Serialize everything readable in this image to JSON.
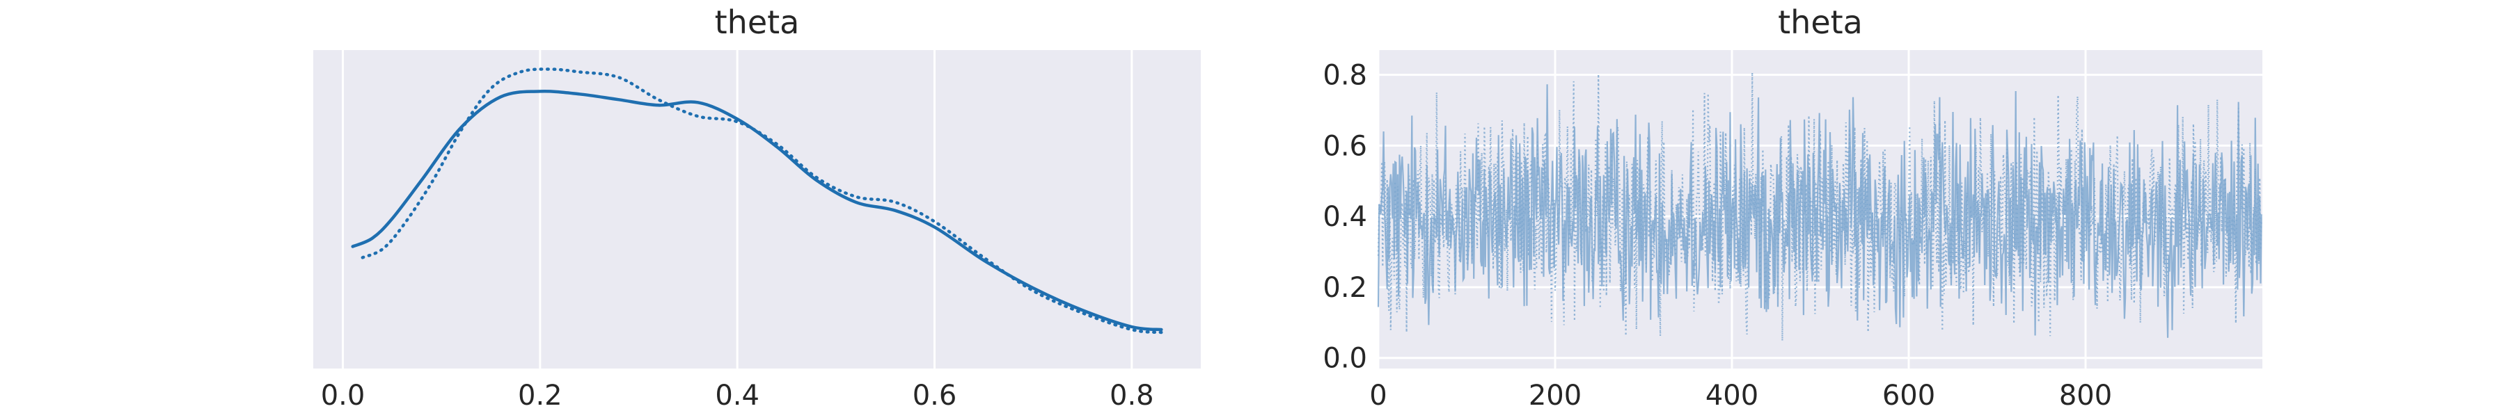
{
  "chart_data": [
    {
      "type": "line",
      "title": "theta",
      "xlabel": "",
      "ylabel": "",
      "xlim": [
        -0.03,
        0.87
      ],
      "ylim": [
        0.0,
        1.0
      ],
      "x_ticks": [
        0.0,
        0.2,
        0.4,
        0.6,
        0.8
      ],
      "x_tick_labels": [
        "0.0",
        "0.2",
        "0.4",
        "0.6",
        "0.8"
      ],
      "y_ticks_visible": false,
      "grid": true,
      "legend": "none",
      "series": [
        {
          "style": "solid",
          "color": "#1f6fb0",
          "x": [
            0.01,
            0.03,
            0.05,
            0.08,
            0.12,
            0.16,
            0.2,
            0.24,
            0.28,
            0.32,
            0.36,
            0.4,
            0.44,
            0.48,
            0.52,
            0.56,
            0.6,
            0.65,
            0.7,
            0.75,
            0.8,
            0.83
          ],
          "y": [
            0.36,
            0.39,
            0.46,
            0.6,
            0.79,
            0.9,
            0.92,
            0.91,
            0.89,
            0.87,
            0.88,
            0.82,
            0.72,
            0.6,
            0.52,
            0.49,
            0.43,
            0.31,
            0.21,
            0.13,
            0.07,
            0.06
          ]
        },
        {
          "style": "dotted",
          "color": "#1f6fb0",
          "x": [
            0.02,
            0.04,
            0.06,
            0.09,
            0.12,
            0.15,
            0.18,
            0.21,
            0.24,
            0.28,
            0.32,
            0.36,
            0.4,
            0.44,
            0.48,
            0.52,
            0.56,
            0.6,
            0.65,
            0.7,
            0.75,
            0.8,
            0.83
          ],
          "y": [
            0.32,
            0.35,
            0.43,
            0.59,
            0.78,
            0.93,
            0.99,
            1.0,
            0.99,
            0.97,
            0.89,
            0.83,
            0.81,
            0.73,
            0.61,
            0.54,
            0.52,
            0.45,
            0.32,
            0.2,
            0.12,
            0.06,
            0.05
          ]
        }
      ]
    },
    {
      "type": "line",
      "title": "theta",
      "xlabel": "",
      "ylabel": "",
      "xlim": [
        0,
        1000
      ],
      "ylim": [
        -0.03,
        0.87
      ],
      "x_ticks": [
        0,
        200,
        400,
        600,
        800
      ],
      "x_tick_labels": [
        "0",
        "200",
        "400",
        "600",
        "800"
      ],
      "y_ticks": [
        0.0,
        0.2,
        0.4,
        0.6,
        0.8
      ],
      "y_tick_labels": [
        "0.0",
        "0.2",
        "0.4",
        "0.6",
        "0.8"
      ],
      "grid": true,
      "legend": "none",
      "draws": 1000,
      "series": [
        {
          "style": "solid",
          "color": "#7fa8d0",
          "min": 0.02,
          "max": 0.84,
          "mean": 0.33
        },
        {
          "style": "dotted",
          "color": "#7fa8d0",
          "min": 0.02,
          "max": 0.84,
          "mean": 0.33
        }
      ]
    }
  ]
}
